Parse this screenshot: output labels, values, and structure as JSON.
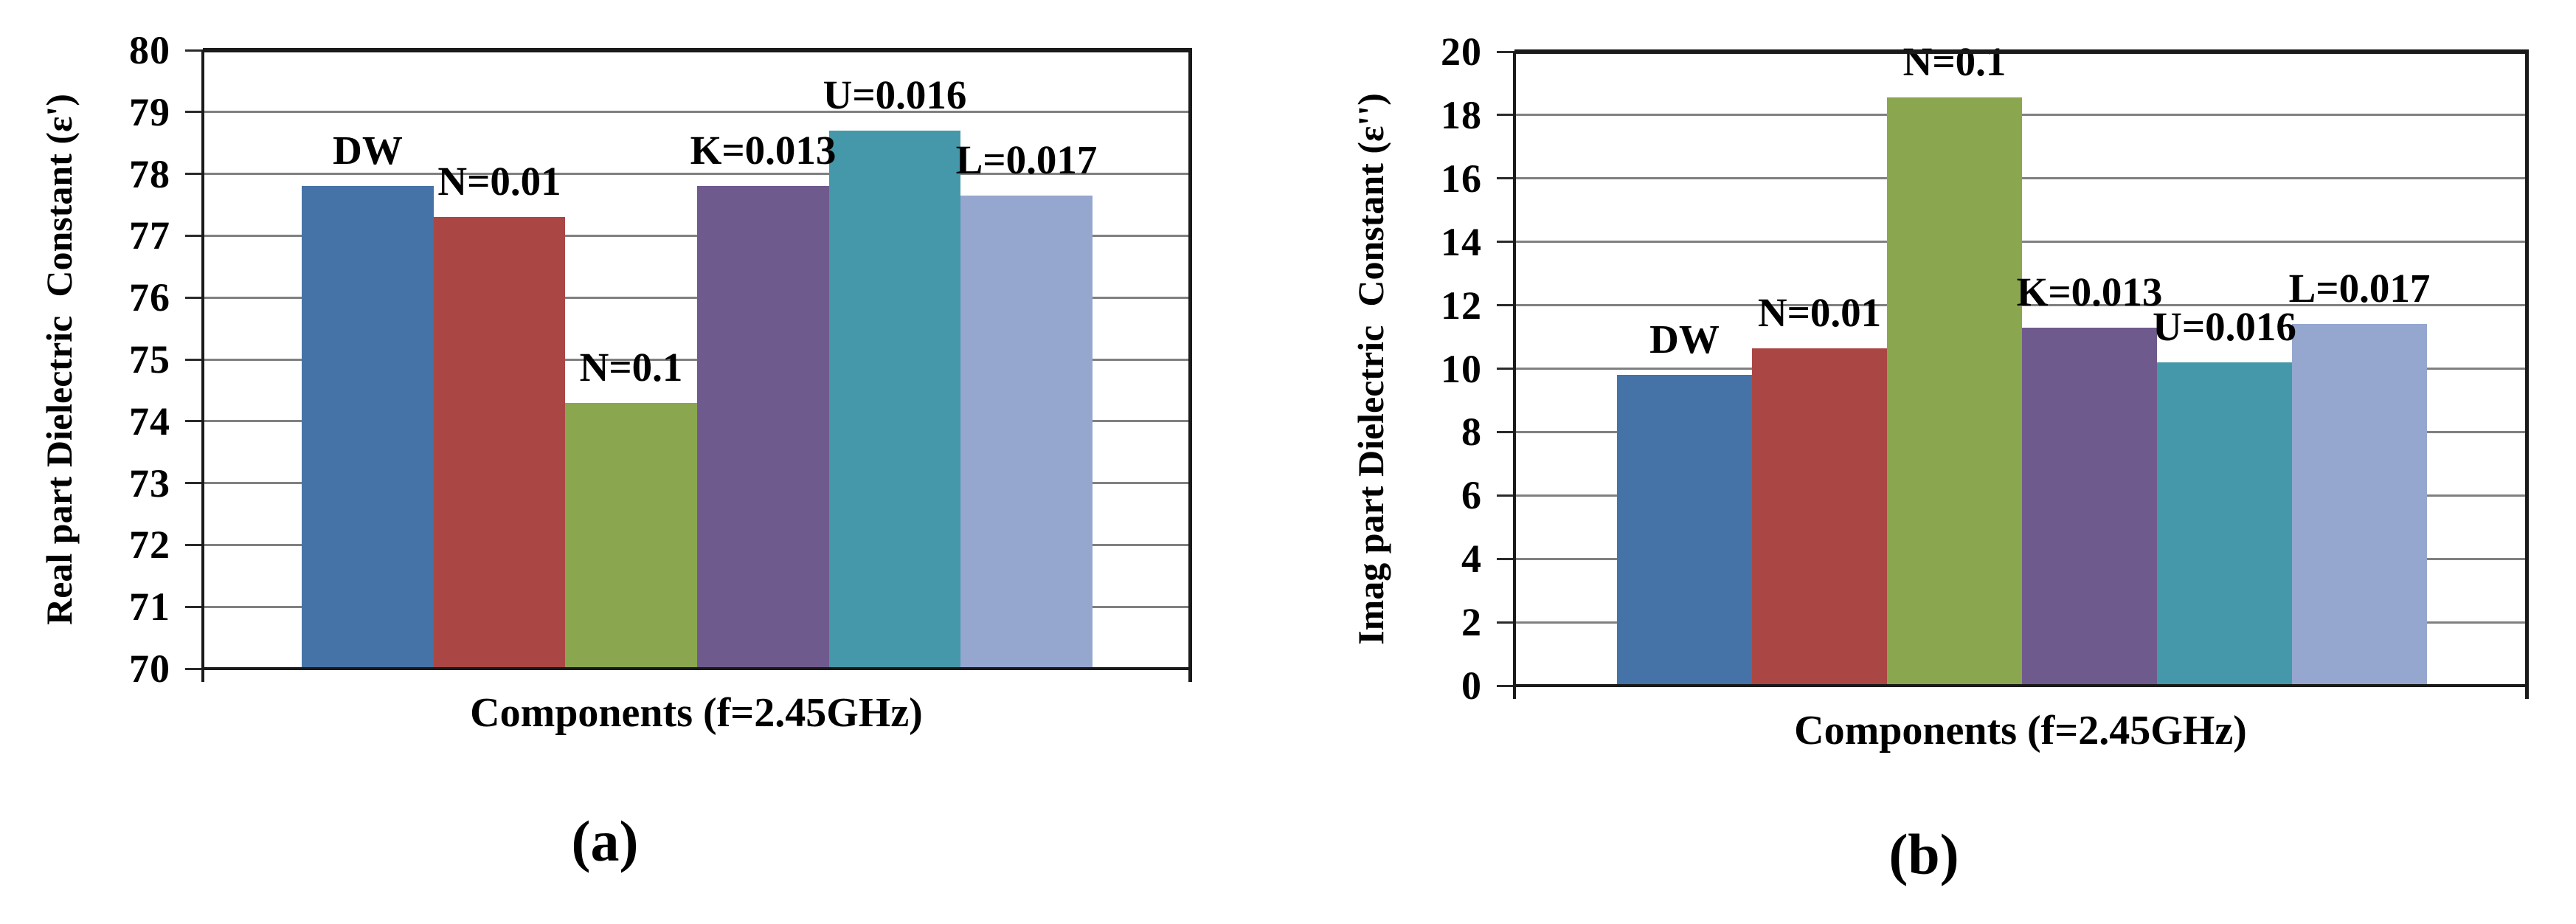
{
  "colors": {
    "background": "#ffffff",
    "gridline": "#808080",
    "axis": "#1a1a1a",
    "text": "#000000",
    "bar_blue": "#4573A7",
    "bar_red": "#AA4744",
    "bar_green": "#8AA74F",
    "bar_purple": "#6F5A8D",
    "bar_teal": "#4598A9",
    "bar_lightblue": "#95A7CF"
  },
  "chart_data": [
    {
      "type": "bar",
      "panel": "a",
      "caption": "(a)",
      "title": "",
      "xlabel": "Components (f=2.45GHz)",
      "ylabel": "Real part Dielectric  Constant (ε')",
      "categories": [
        "DW",
        "N=0.01",
        "N=0.1",
        "K=0.013",
        "U=0.016",
        "L=0.017"
      ],
      "values": [
        77.8,
        77.3,
        74.3,
        77.8,
        78.7,
        77.65
      ],
      "bar_colors": [
        "#4573A7",
        "#AA4744",
        "#8AA74F",
        "#6F5A8D",
        "#4598A9",
        "#95A7CF"
      ],
      "ylim": [
        70,
        80
      ],
      "ytick_step": 1,
      "yticks": [
        "80",
        "79",
        "78",
        "77",
        "76",
        "75",
        "74",
        "73",
        "72",
        "71",
        "70"
      ],
      "grid": true,
      "legend": false
    },
    {
      "type": "bar",
      "panel": "b",
      "caption": "(b)",
      "title": "",
      "xlabel": "Components (f=2.45GHz)",
      "ylabel": "Imag part Dielectric  Constant (ε'')",
      "categories": [
        "DW",
        "N=0.01",
        "N=0.1",
        "K=0.013",
        "U=0.016",
        "L=0.017"
      ],
      "values": [
        9.8,
        10.65,
        18.55,
        11.3,
        10.2,
        11.4
      ],
      "bar_colors": [
        "#4573A7",
        "#AA4744",
        "#8AA74F",
        "#6F5A8D",
        "#4598A9",
        "#95A7CF"
      ],
      "ylim": [
        0,
        20
      ],
      "ytick_step": 2,
      "yticks": [
        "20",
        "18",
        "16",
        "14",
        "12",
        "10",
        "8",
        "6",
        "4",
        "2",
        "0"
      ],
      "grid": true,
      "legend": false
    }
  ]
}
